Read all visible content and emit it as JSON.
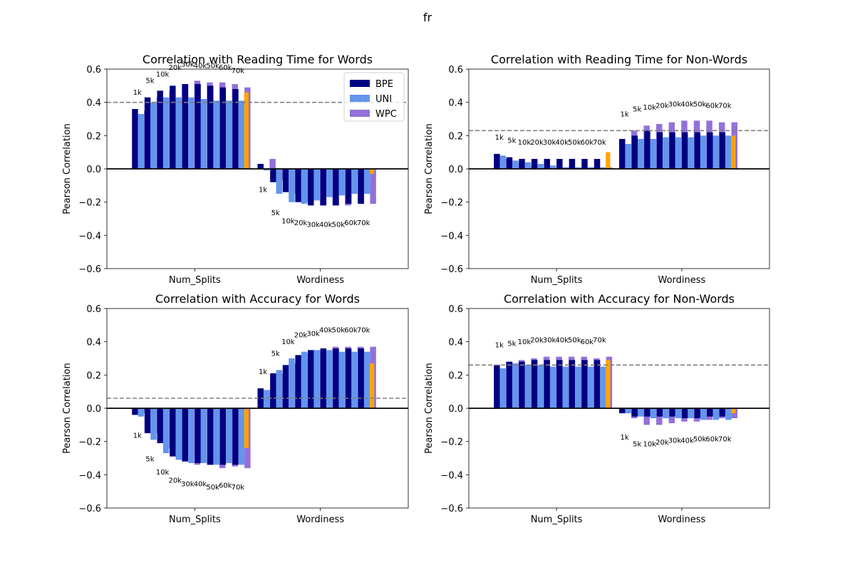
{
  "figure": {
    "suptitle": "fr"
  },
  "legend": [
    {
      "name": "BPE",
      "color": "#000080"
    },
    {
      "name": "UNI",
      "color": "#6495ED"
    },
    {
      "name": "WPC",
      "color": "#9370DB"
    }
  ],
  "colors": {
    "BPE": "#000080",
    "UNI": "#6495ED",
    "WPC": "#9370DB",
    "baseline": "#FFA500",
    "reference_line": "#808080",
    "zero_line": "#000000"
  },
  "chart_data": [
    {
      "type": "bar",
      "title": "Correlation with Reading Time for Words",
      "xlabel": "",
      "ylabel": "Pearson Correlation",
      "ylim": [
        -0.6,
        0.6
      ],
      "yticks": [
        "−0.6",
        "−0.4",
        "−0.2",
        "0.0",
        "0.2",
        "0.4",
        "0.6"
      ],
      "categories": [
        "Num_Splits",
        "Wordiness"
      ],
      "vocab_sizes": [
        "1k",
        "5k",
        "10k",
        "20k",
        "30k",
        "40k",
        "50k",
        "60k",
        "70k"
      ],
      "reference_line": 0.4,
      "legend_position": "top-right",
      "series": [
        {
          "name": "BPE",
          "values": {
            "Num_Splits": [
              0.36,
              0.43,
              0.47,
              0.5,
              0.51,
              0.51,
              0.5,
              0.49,
              0.48
            ],
            "Wordiness": [
              0.03,
              -0.08,
              -0.14,
              -0.2,
              -0.22,
              -0.22,
              -0.22,
              -0.21,
              -0.21
            ]
          }
        },
        {
          "name": "UNI",
          "values": {
            "Num_Splits": [
              0.33,
              0.4,
              0.43,
              0.43,
              0.43,
              0.42,
              0.41,
              0.41,
              0.41
            ],
            "Wordiness": [
              -0.01,
              -0.15,
              -0.2,
              -0.21,
              -0.19,
              -0.17,
              -0.16,
              -0.15,
              -0.15
            ]
          }
        },
        {
          "name": "WPC",
          "values": {
            "Num_Splits": [
              0.35,
              0.43,
              0.47,
              0.51,
              0.53,
              0.52,
              0.52,
              0.51,
              0.49
            ],
            "Wordiness": [
              0.06,
              -0.07,
              -0.15,
              -0.2,
              -0.22,
              -0.22,
              -0.22,
              -0.21,
              -0.21
            ]
          }
        },
        {
          "name": "",
          "values": {
            "Num_Splits": [
              0.46
            ],
            "Wordiness": [
              -0.03
            ]
          }
        }
      ],
      "bar_labels": {
        "Num_Splits": "above",
        "Wordiness": "below"
      }
    },
    {
      "type": "bar",
      "title": "Correlation with Reading Time for Non-Words",
      "xlabel": "",
      "ylabel": "Pearson Correlation",
      "ylim": [
        -0.6,
        0.6
      ],
      "yticks": [
        "−0.6",
        "−0.4",
        "−0.2",
        "0.0",
        "0.2",
        "0.4",
        "0.6"
      ],
      "categories": [
        "Num_Splits",
        "Wordiness"
      ],
      "vocab_sizes": [
        "1k",
        "5k",
        "10k",
        "20k",
        "30k",
        "40k",
        "50k",
        "60k",
        "70k"
      ],
      "reference_line": 0.23,
      "series": [
        {
          "name": "BPE",
          "values": {
            "Num_Splits": [
              0.09,
              0.07,
              0.06,
              0.06,
              0.06,
              0.06,
              0.06,
              0.06,
              0.06
            ],
            "Wordiness": [
              0.18,
              0.2,
              0.23,
              0.22,
              0.22,
              0.22,
              0.22,
              0.22,
              0.22
            ]
          }
        },
        {
          "name": "UNI",
          "values": {
            "Num_Splits": [
              0.08,
              0.05,
              0.04,
              0.03,
              0.02,
              0.01,
              0.01,
              0.01,
              0.01
            ],
            "Wordiness": [
              0.15,
              0.18,
              0.18,
              0.19,
              0.19,
              0.19,
              0.2,
              0.2,
              0.2
            ]
          }
        },
        {
          "name": "WPC",
          "values": {
            "Num_Splits": [
              0.06,
              0.04,
              0.02,
              0.01,
              0.01,
              0.01,
              0.01,
              0.01,
              0.01
            ],
            "Wordiness": [
              0.23,
              0.26,
              0.27,
              0.28,
              0.29,
              0.29,
              0.29,
              0.28,
              0.28
            ]
          }
        },
        {
          "name": "",
          "values": {
            "Num_Splits": [
              0.1
            ],
            "Wordiness": [
              0.2
            ]
          }
        }
      ],
      "bar_labels": {
        "Num_Splits": "above",
        "Wordiness": "above"
      }
    },
    {
      "type": "bar",
      "title": "Correlation with Accuracy for Words",
      "xlabel": "",
      "ylabel": "Pearson Correlation",
      "ylim": [
        -0.6,
        0.6
      ],
      "yticks": [
        "−0.6",
        "−0.4",
        "−0.2",
        "0.0",
        "0.2",
        "0.4",
        "0.6"
      ],
      "categories": [
        "Num_Splits",
        "Wordiness"
      ],
      "vocab_sizes": [
        "1k",
        "5k",
        "10k",
        "20k",
        "30k",
        "40k",
        "50k",
        "60k",
        "70k"
      ],
      "reference_line": 0.06,
      "series": [
        {
          "name": "BPE",
          "values": {
            "Num_Splits": [
              -0.04,
              -0.15,
              -0.21,
              -0.29,
              -0.32,
              -0.33,
              -0.34,
              -0.34,
              -0.34
            ],
            "Wordiness": [
              0.12,
              0.21,
              0.26,
              0.32,
              0.35,
              0.36,
              0.36,
              0.36,
              0.36
            ]
          }
        },
        {
          "name": "UNI",
          "values": {
            "Num_Splits": [
              -0.05,
              -0.19,
              -0.27,
              -0.31,
              -0.33,
              -0.33,
              -0.34,
              -0.33,
              -0.34
            ],
            "Wordiness": [
              0.11,
              0.23,
              0.3,
              0.34,
              0.35,
              0.35,
              0.34,
              0.34,
              0.34
            ]
          }
        },
        {
          "name": "WPC",
          "values": {
            "Num_Splits": [
              -0.03,
              -0.15,
              -0.24,
              -0.32,
              -0.34,
              -0.34,
              -0.36,
              -0.35,
              -0.36
            ],
            "Wordiness": [
              0.11,
              0.21,
              0.27,
              0.33,
              0.35,
              0.37,
              0.37,
              0.37,
              0.37
            ]
          }
        },
        {
          "name": "",
          "values": {
            "Num_Splits": [
              -0.24
            ],
            "Wordiness": [
              0.27
            ]
          }
        }
      ],
      "bar_labels": {
        "Num_Splits": "below",
        "Wordiness": "above"
      }
    },
    {
      "type": "bar",
      "title": "Correlation with Accuracy for Non-Words",
      "xlabel": "",
      "ylabel": "Pearson Correlation",
      "ylim": [
        -0.6,
        0.6
      ],
      "yticks": [
        "−0.6",
        "−0.4",
        "−0.2",
        "0.0",
        "0.2",
        "0.4",
        "0.6"
      ],
      "categories": [
        "Num_Splits",
        "Wordiness"
      ],
      "vocab_sizes": [
        "1k",
        "5k",
        "10k",
        "20k",
        "30k",
        "40k",
        "50k",
        "60k",
        "70k"
      ],
      "reference_line": 0.26,
      "series": [
        {
          "name": "BPE",
          "values": {
            "Num_Splits": [
              0.26,
              0.28,
              0.28,
              0.29,
              0.29,
              0.29,
              0.29,
              0.29,
              0.29
            ],
            "Wordiness": [
              -0.03,
              -0.05,
              -0.05,
              -0.05,
              -0.05,
              -0.06,
              -0.06,
              -0.05,
              -0.05
            ]
          }
        },
        {
          "name": "UNI",
          "values": {
            "Num_Splits": [
              0.24,
              0.27,
              0.26,
              0.26,
              0.25,
              0.25,
              0.25,
              0.25,
              0.25
            ],
            "Wordiness": [
              -0.03,
              -0.05,
              -0.06,
              -0.06,
              -0.06,
              -0.06,
              -0.07,
              -0.07,
              -0.07
            ]
          }
        },
        {
          "name": "WPC",
          "values": {
            "Num_Splits": [
              0.28,
              0.29,
              0.3,
              0.31,
              0.31,
              0.31,
              0.31,
              0.3,
              0.31
            ],
            "Wordiness": [
              -0.06,
              -0.1,
              -0.1,
              -0.09,
              -0.08,
              -0.08,
              -0.07,
              -0.06,
              -0.06
            ]
          }
        },
        {
          "name": "",
          "values": {
            "Num_Splits": [
              0.29
            ],
            "Wordiness": [
              -0.03
            ]
          }
        }
      ],
      "bar_labels": {
        "Num_Splits": "above",
        "Wordiness": "below"
      }
    }
  ]
}
